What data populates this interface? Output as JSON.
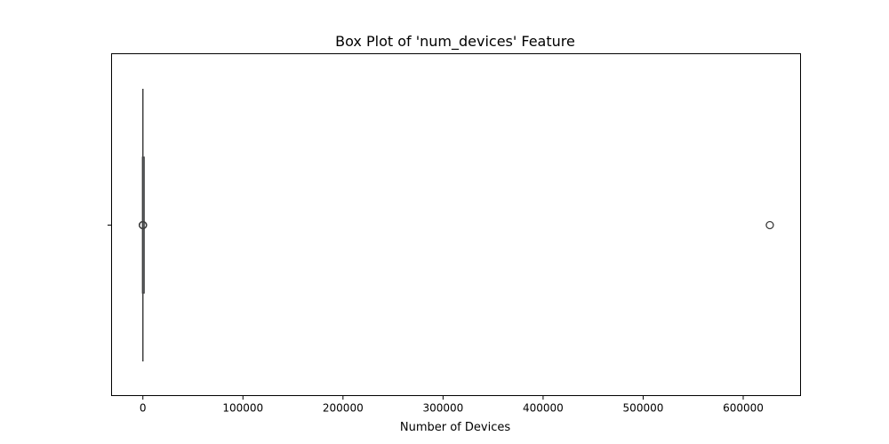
{
  "chart_data": {
    "type": "box",
    "orientation": "horizontal",
    "title": "Box Plot of 'num_devices' Feature",
    "xlabel": "Number of Devices",
    "ylabel": "",
    "xlim": [
      -31300,
      657300
    ],
    "xticks": [
      0,
      100000,
      200000,
      300000,
      400000,
      500000,
      600000
    ],
    "xtick_labels": [
      "0",
      "100000",
      "200000",
      "300000",
      "400000",
      "500000",
      "600000"
    ],
    "grid": false,
    "series": [
      {
        "whisker_low": 0,
        "q1": 1,
        "median": 2,
        "q3": 3,
        "whisker_high": 6,
        "outliers": [
          8,
          10,
          15,
          30,
          60,
          626600
        ]
      }
    ],
    "colors": {
      "box_edge": "#3f3f3f",
      "frame": "#000000",
      "background": "#ffffff"
    }
  }
}
